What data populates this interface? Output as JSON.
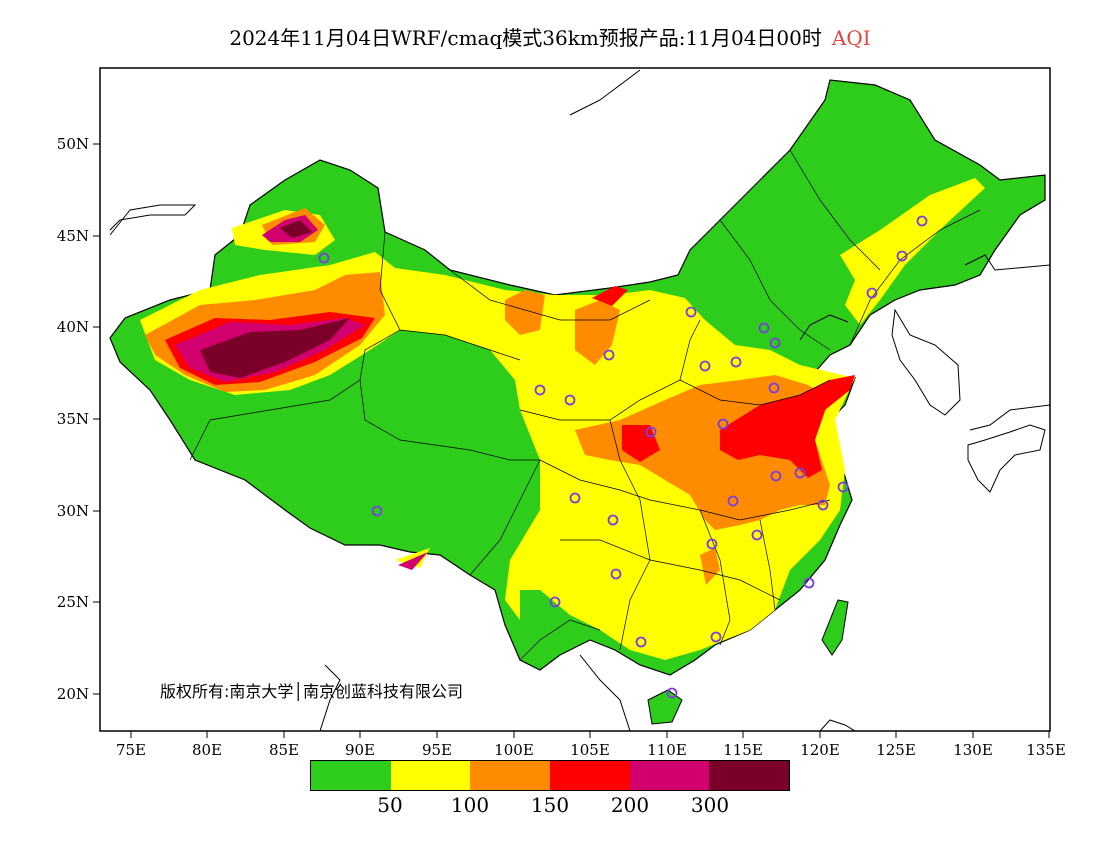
{
  "title": {
    "text": "2024年11月04日WRF/cmaq模式36km预报产品:11月04日00时",
    "variable": "AQI"
  },
  "axes": {
    "lat_ticks": [
      "20N",
      "25N",
      "30N",
      "35N",
      "40N",
      "45N",
      "50N"
    ],
    "lon_ticks": [
      "75E",
      "80E",
      "85E",
      "90E",
      "95E",
      "100E",
      "105E",
      "110E",
      "115E",
      "120E",
      "125E",
      "130E",
      "135E"
    ]
  },
  "copyright": "版权所有:南京大学│南京创蓝科技有限公司",
  "legend": {
    "colors": [
      "#2ecc1b",
      "#ffff00",
      "#ff8c00",
      "#ff0000",
      "#d1006e",
      "#7a0029"
    ],
    "labels": [
      "50",
      "100",
      "150",
      "200",
      "300"
    ]
  },
  "colors": {
    "background": "#ffffff",
    "border": "#000000",
    "station": "#7b3fe0"
  }
}
